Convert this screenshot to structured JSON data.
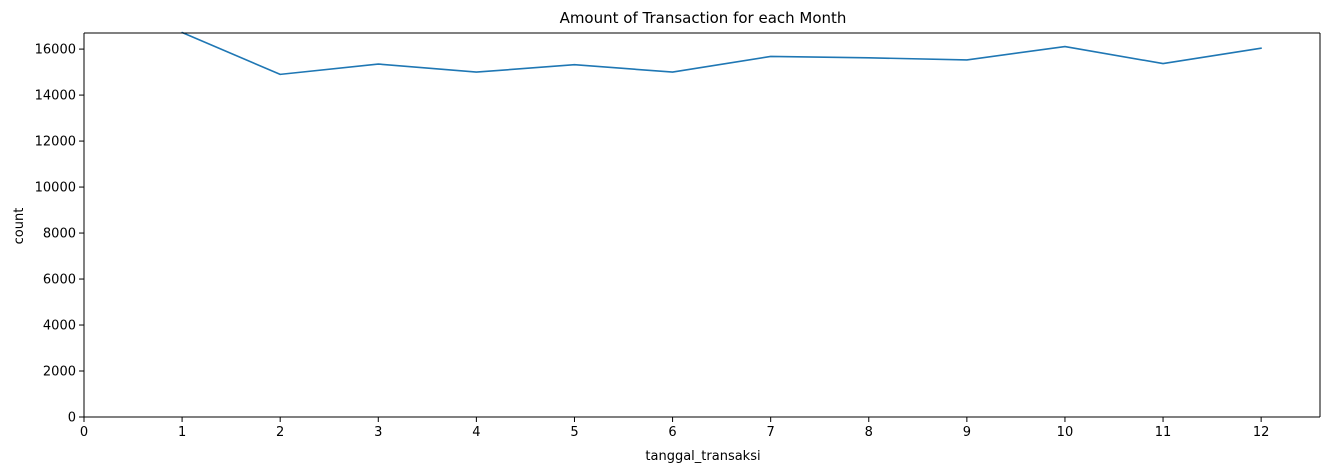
{
  "chart_data": {
    "type": "line",
    "title": "Amount of Transaction for each Month",
    "xlabel": "tanggal_transaksi",
    "ylabel": "count",
    "xlim": [
      0,
      12.6
    ],
    "ylim": [
      0,
      16700
    ],
    "x_ticks": [
      0,
      1,
      2,
      3,
      4,
      5,
      6,
      7,
      8,
      9,
      10,
      11,
      12
    ],
    "y_ticks": [
      0,
      2000,
      4000,
      6000,
      8000,
      10000,
      12000,
      14000,
      16000
    ],
    "grid": false,
    "colors": {
      "series": "#1f77b4"
    },
    "series": [
      {
        "x": [
          1,
          2,
          3,
          4,
          5,
          6,
          7,
          8,
          9,
          10,
          11,
          12
        ],
        "values": [
          16720,
          14900,
          15350,
          15000,
          15320,
          15000,
          15680,
          15620,
          15530,
          16110,
          15370,
          16040
        ]
      }
    ]
  }
}
